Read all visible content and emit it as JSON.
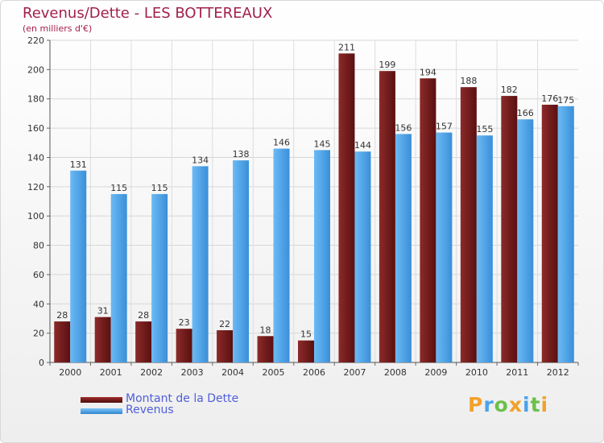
{
  "title": "Revenus/Dette - LES BOTTEREAUX",
  "subtitle": "(en milliers d'€)",
  "chart_data": {
    "type": "bar",
    "categories": [
      "2000",
      "2001",
      "2002",
      "2003",
      "2004",
      "2005",
      "2006",
      "2007",
      "2008",
      "2009",
      "2010",
      "2011",
      "2012"
    ],
    "series": [
      {
        "name": "Montant de la Dette",
        "color": "#7a1e1e",
        "values": [
          28,
          31,
          28,
          23,
          22,
          18,
          15,
          211,
          199,
          194,
          188,
          182,
          176
        ]
      },
      {
        "name": "Revenus",
        "color": "#4aa3e8",
        "values": [
          131,
          115,
          115,
          134,
          138,
          146,
          145,
          144,
          156,
          157,
          155,
          166,
          175
        ]
      }
    ],
    "ylim": [
      0,
      220
    ],
    "yticks": [
      0,
      20,
      40,
      60,
      80,
      100,
      120,
      140,
      160,
      180,
      200,
      220
    ],
    "grid": true,
    "legend_position": "bottom-left"
  },
  "legend": {
    "debt_label": "Montant de la Dette",
    "revenue_label": "Revenus"
  },
  "logo": {
    "letters": [
      "P",
      "r",
      "o",
      "x",
      "i",
      "t",
      "i"
    ],
    "colors": [
      "#f2a12b",
      "#4aa3e8",
      "#6cc04a",
      "#f2a12b",
      "#4aa3e8",
      "#6cc04a",
      "#f2a12b"
    ]
  }
}
